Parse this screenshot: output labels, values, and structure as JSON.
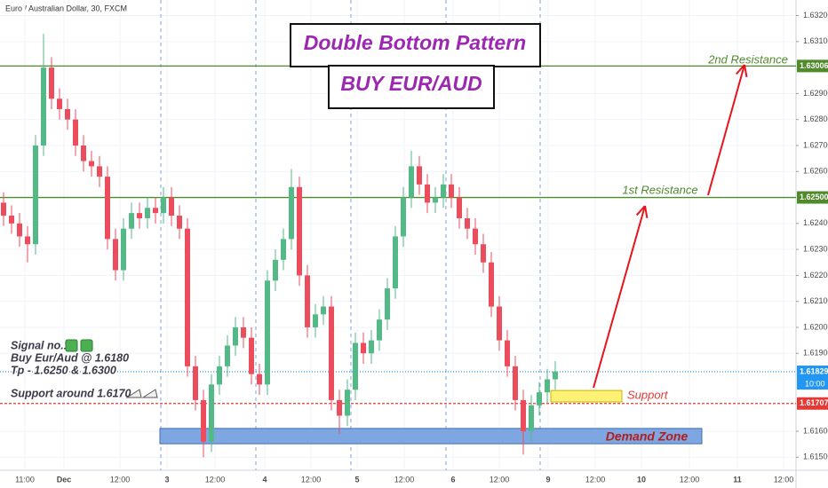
{
  "chart_data": {
    "type": "candlestick",
    "title": "Euro / Australian Dollar, 30, FXCM",
    "up_color": "#53b987",
    "down_color": "#eb4d5c",
    "ylim": [
      1.6145,
      1.6326
    ],
    "yticks": [
      {
        "value": 1.615,
        "label": "1.61500"
      },
      {
        "value": 1.616,
        "label": "1.61600"
      },
      {
        "value": 1.619,
        "label": "1.61900"
      },
      {
        "value": 1.62,
        "label": "1.62000"
      },
      {
        "value": 1.621,
        "label": "1.62100"
      },
      {
        "value": 1.622,
        "label": "1.62200"
      },
      {
        "value": 1.623,
        "label": "1.62300"
      },
      {
        "value": 1.624,
        "label": "1.62400"
      },
      {
        "value": 1.626,
        "label": "1.62600"
      },
      {
        "value": 1.627,
        "label": "1.62700"
      },
      {
        "value": 1.628,
        "label": "1.62800"
      },
      {
        "value": 1.629,
        "label": "1.62900"
      },
      {
        "value": 1.631,
        "label": "1.63100"
      },
      {
        "value": 1.632,
        "label": "1.63200"
      }
    ],
    "grid": true,
    "xtick_labels": [
      "11:00",
      "Dec",
      "12:00",
      "3",
      "12:00",
      "4",
      "12:00",
      "5",
      "12:00",
      "6",
      "12:00",
      "9",
      "12:00",
      "10",
      "12:00",
      "11",
      "12:00"
    ],
    "open": [
      1.6248,
      1.6243,
      1.624,
      1.6235,
      1.6232,
      1.627,
      1.63,
      1.6288,
      1.6284,
      1.628,
      1.627,
      1.6264,
      1.6262,
      1.6258,
      1.6234,
      1.6222,
      1.6238,
      1.6244,
      1.6242,
      1.6246,
      1.6244,
      1.625,
      1.6243,
      1.6238,
      1.6185,
      1.6172,
      1.6156,
      1.6178,
      1.6185,
      1.6193,
      1.62,
      1.6196,
      1.6182,
      1.6178,
      1.6218,
      1.6226,
      1.6234,
      1.6254,
      1.622,
      1.62,
      1.6205,
      1.6208,
      1.6172,
      1.6166,
      1.6176,
      1.6194,
      1.619,
      1.6195,
      1.6203,
      1.6215,
      1.6235,
      1.625,
      1.6262,
      1.6255,
      1.6248,
      1.625,
      1.6255,
      1.625,
      1.6242,
      1.6238,
      1.6232,
      1.6225,
      1.6208,
      1.6195,
      1.6185,
      1.6172,
      1.616,
      1.617,
      1.6175,
      1.618
    ],
    "high": [
      1.6252,
      1.6247,
      1.6244,
      1.6239,
      1.6274,
      1.6313,
      1.6304,
      1.6292,
      1.6288,
      1.6284,
      1.6274,
      1.6268,
      1.6266,
      1.6262,
      1.6238,
      1.6242,
      1.6248,
      1.6248,
      1.625,
      1.625,
      1.6254,
      1.6254,
      1.6247,
      1.6242,
      1.6189,
      1.6176,
      1.6182,
      1.6189,
      1.6197,
      1.6204,
      1.6204,
      1.62,
      1.6186,
      1.6222,
      1.623,
      1.6238,
      1.6261,
      1.6258,
      1.6224,
      1.6209,
      1.6212,
      1.6212,
      1.6176,
      1.618,
      1.6198,
      1.6198,
      1.6199,
      1.6207,
      1.6219,
      1.6239,
      1.6254,
      1.6268,
      1.6266,
      1.6259,
      1.6254,
      1.6259,
      1.6259,
      1.6254,
      1.6246,
      1.6242,
      1.6236,
      1.6229,
      1.6212,
      1.6199,
      1.6189,
      1.6176,
      1.6174,
      1.6179,
      1.6184,
      1.6187
    ],
    "low": [
      1.6239,
      1.6236,
      1.6231,
      1.6225,
      1.6228,
      1.6266,
      1.6284,
      1.628,
      1.6276,
      1.6266,
      1.626,
      1.6258,
      1.6254,
      1.623,
      1.6218,
      1.6218,
      1.6234,
      1.6238,
      1.6238,
      1.624,
      1.624,
      1.6239,
      1.6234,
      1.6181,
      1.6168,
      1.615,
      1.6152,
      1.6174,
      1.6181,
      1.6189,
      1.6192,
      1.6178,
      1.6174,
      1.6174,
      1.6214,
      1.6222,
      1.623,
      1.6216,
      1.6196,
      1.6196,
      1.6201,
      1.6168,
      1.6159,
      1.6162,
      1.6172,
      1.6186,
      1.6186,
      1.6191,
      1.6199,
      1.6211,
      1.6231,
      1.6246,
      1.6251,
      1.6244,
      1.6244,
      1.6246,
      1.6246,
      1.6238,
      1.6234,
      1.6228,
      1.6221,
      1.6204,
      1.6191,
      1.6181,
      1.6168,
      1.6151,
      1.6156,
      1.6166,
      1.6171,
      1.6176
    ],
    "close": [
      1.6243,
      1.624,
      1.6235,
      1.6232,
      1.627,
      1.63,
      1.6288,
      1.6284,
      1.628,
      1.627,
      1.6264,
      1.6262,
      1.6258,
      1.6234,
      1.6222,
      1.6238,
      1.6244,
      1.6242,
      1.6246,
      1.6244,
      1.625,
      1.6243,
      1.6238,
      1.6185,
      1.6172,
      1.6156,
      1.6178,
      1.6185,
      1.6193,
      1.62,
      1.6196,
      1.6182,
      1.6178,
      1.6218,
      1.6226,
      1.6234,
      1.6254,
      1.622,
      1.62,
      1.6205,
      1.6208,
      1.6172,
      1.6166,
      1.6176,
      1.6194,
      1.619,
      1.6195,
      1.6203,
      1.6215,
      1.6235,
      1.625,
      1.6262,
      1.6255,
      1.6248,
      1.625,
      1.6255,
      1.625,
      1.6242,
      1.6238,
      1.6232,
      1.6225,
      1.6208,
      1.6195,
      1.6185,
      1.6172,
      1.616,
      1.617,
      1.6175,
      1.618,
      1.6183
    ],
    "levels": [
      {
        "value": 1.63006,
        "label": "1.63006",
        "color": "#4f8a2b"
      },
      {
        "value": 1.625,
        "label": "1.62500",
        "color": "#4f8a2b"
      },
      {
        "value": 1.61829,
        "label": "1.61829",
        "color": "#2196f3"
      },
      {
        "value": 1.61707,
        "label": "1.61707",
        "color": "#e53935"
      }
    ],
    "countdown": "10:00",
    "zones": [
      {
        "label": "Demand Zone",
        "from": 1.61552,
        "to": 1.61611,
        "color": "#7ea6e0"
      },
      {
        "label": "Support",
        "from": 1.61713,
        "to": 1.61757,
        "color": "#fff176"
      }
    ],
    "titles": [
      "Double Bottom Pattern",
      "BUY EUR/AUD"
    ],
    "resistance_labels": [
      "2nd Resistance",
      "1st Resistance"
    ],
    "notes": [
      "Signal no.1",
      "Buy Eur/Aud @ 1.6180",
      "Tp - 1.6250 & 1.6300",
      "Support around 1.6170"
    ]
  }
}
